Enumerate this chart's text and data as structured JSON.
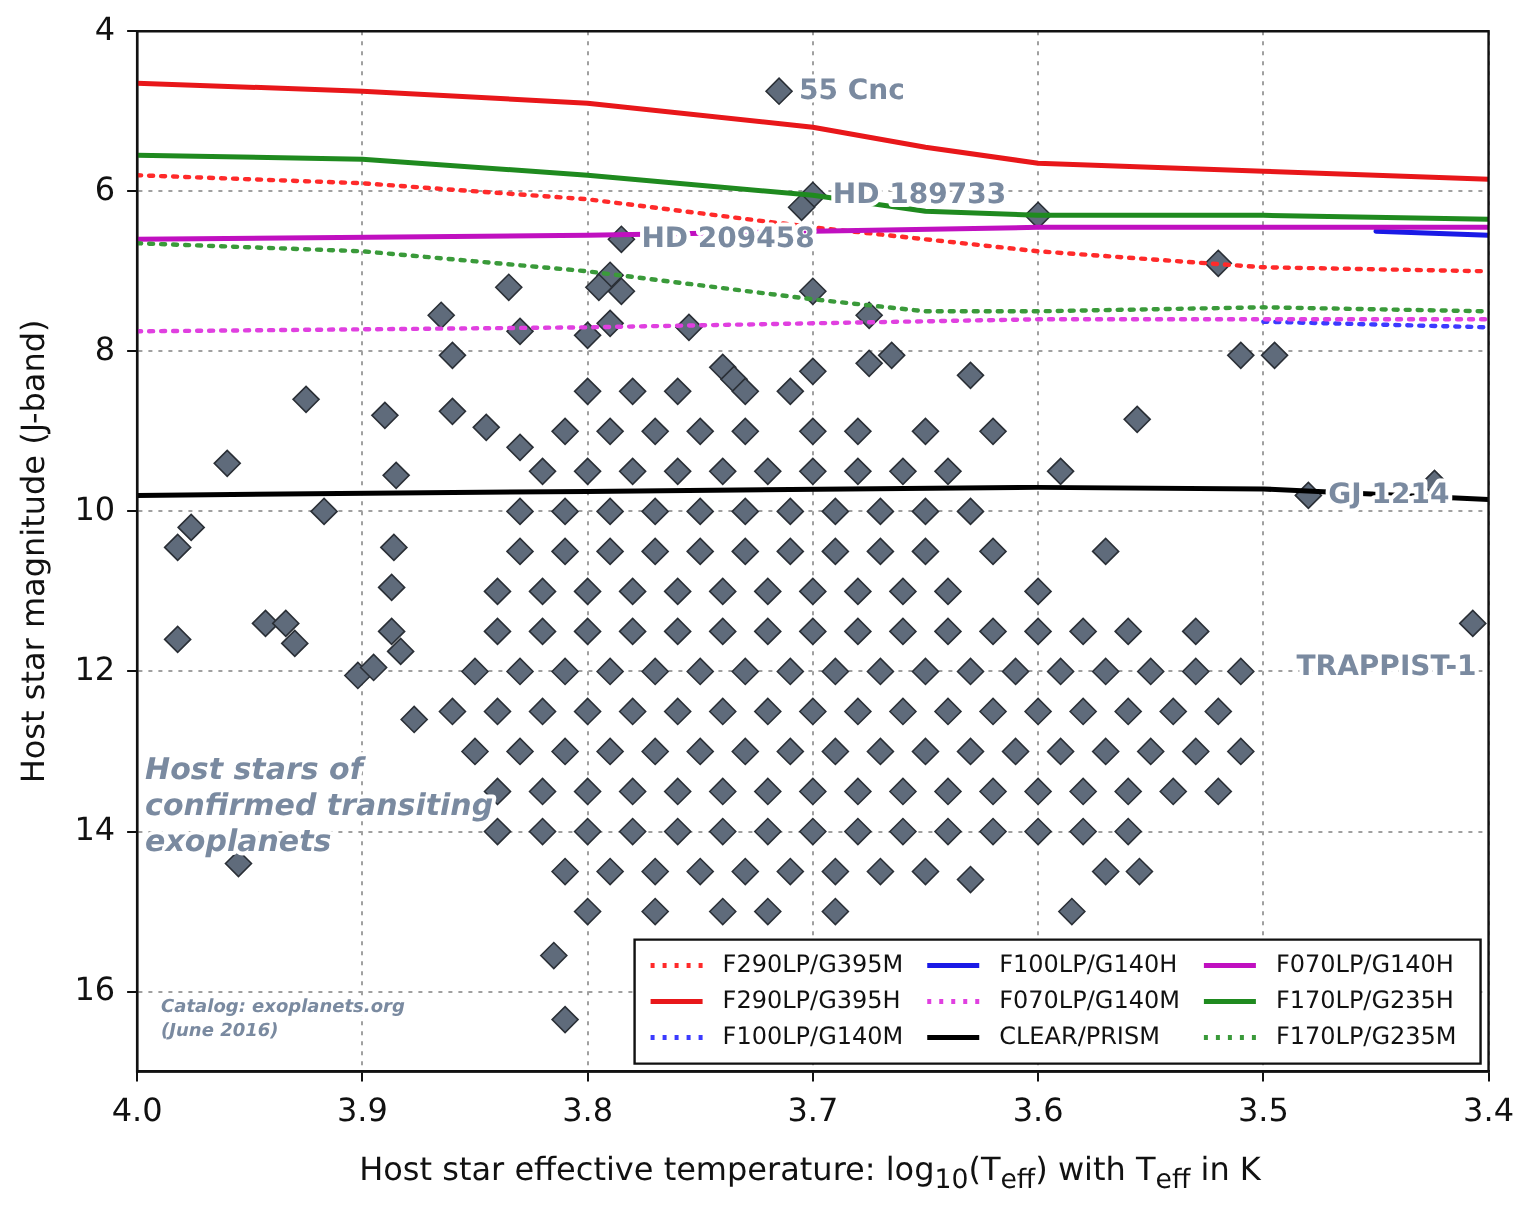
{
  "chart_data": {
    "type": "line",
    "xlabel": "Host star effective temperature: log$_{10}$(T$_{eff}$) with T$_{eff}$ in K",
    "ylabel": "Host star magnitude (J-band)",
    "xlim": [
      4.0,
      3.4
    ],
    "xticks": [
      {
        "value": 4.0,
        "label": "4.0"
      },
      3.9,
      3.8,
      3.7,
      3.6,
      3.5,
      3.4
    ],
    "ylim": [
      17,
      4
    ],
    "yticks": [
      4,
      6,
      8,
      10,
      12,
      14,
      16
    ],
    "grid": true,
    "legend": "bottom right",
    "annotations": [
      {
        "text": "55 Cnc",
        "x": 3.715,
        "y": 4.75
      },
      {
        "text": "HD 189733",
        "x": 3.7,
        "y": 6.05
      },
      {
        "text": "HD 209458",
        "x": 3.785,
        "y": 6.6
      },
      {
        "text": "GJ 1214",
        "x": 3.48,
        "y": 9.8
      },
      {
        "text": "TRAPPIST-1",
        "x": 3.407,
        "y": 11.4
      },
      "Catalog: exoplanets.org",
      "(June 2016)"
    ],
    "series": [
      {
        "type": "scatter",
        "name": "Host stars of confirmed transiting exoplanets",
        "color": "#5f6b7b",
        "marker": "diamond",
        "x": [
          3.715,
          3.7,
          3.705,
          3.785,
          3.6,
          3.52,
          3.51,
          3.495,
          3.835,
          3.865,
          3.86,
          3.83,
          3.79,
          3.785,
          3.795,
          3.79,
          3.8,
          3.755,
          3.7,
          3.675,
          3.675,
          3.665,
          3.7,
          3.74,
          3.735,
          3.63,
          3.925,
          3.89,
          3.86,
          3.845,
          3.83,
          3.96,
          3.885,
          3.556,
          3.424,
          3.48,
          3.407,
          3.982,
          3.976,
          3.982,
          3.943,
          3.934,
          3.93,
          3.917,
          3.902,
          3.895,
          3.887,
          3.887,
          3.886,
          3.883,
          3.877,
          3.955,
          3.84,
          3.815,
          3.81,
          3.585,
          3.63,
          3.555,
          3.8,
          3.78,
          3.76,
          3.73,
          3.71,
          3.81,
          3.79,
          3.77,
          3.75,
          3.73,
          3.7,
          3.68,
          3.65,
          3.62,
          3.82,
          3.8,
          3.78,
          3.76,
          3.74,
          3.72,
          3.7,
          3.68,
          3.66,
          3.64,
          3.59,
          3.83,
          3.81,
          3.79,
          3.77,
          3.75,
          3.73,
          3.71,
          3.69,
          3.67,
          3.65,
          3.63,
          3.83,
          3.81,
          3.79,
          3.77,
          3.75,
          3.73,
          3.71,
          3.69,
          3.67,
          3.65,
          3.62,
          3.57,
          3.84,
          3.82,
          3.8,
          3.78,
          3.76,
          3.74,
          3.72,
          3.7,
          3.68,
          3.66,
          3.64,
          3.6,
          3.84,
          3.82,
          3.8,
          3.78,
          3.76,
          3.74,
          3.72,
          3.7,
          3.68,
          3.66,
          3.64,
          3.62,
          3.6,
          3.58,
          3.56,
          3.53,
          3.85,
          3.83,
          3.81,
          3.79,
          3.77,
          3.75,
          3.73,
          3.71,
          3.69,
          3.67,
          3.65,
          3.63,
          3.61,
          3.59,
          3.57,
          3.55,
          3.53,
          3.51,
          3.86,
          3.84,
          3.82,
          3.8,
          3.78,
          3.76,
          3.74,
          3.72,
          3.7,
          3.68,
          3.66,
          3.64,
          3.62,
          3.6,
          3.58,
          3.56,
          3.54,
          3.52,
          3.85,
          3.83,
          3.81,
          3.79,
          3.77,
          3.75,
          3.73,
          3.71,
          3.69,
          3.67,
          3.65,
          3.63,
          3.61,
          3.59,
          3.57,
          3.55,
          3.53,
          3.51,
          3.84,
          3.82,
          3.8,
          3.78,
          3.76,
          3.74,
          3.72,
          3.7,
          3.68,
          3.66,
          3.64,
          3.62,
          3.6,
          3.58,
          3.56,
          3.54,
          3.52,
          3.82,
          3.8,
          3.78,
          3.76,
          3.74,
          3.72,
          3.7,
          3.68,
          3.66,
          3.64,
          3.62,
          3.6,
          3.58,
          3.56,
          3.81,
          3.79,
          3.77,
          3.75,
          3.73,
          3.71,
          3.69,
          3.67,
          3.65,
          3.57,
          3.8,
          3.77,
          3.74,
          3.72,
          3.69
        ],
        "values": [
          4.75,
          6.05,
          6.2,
          6.6,
          6.3,
          6.9,
          8.05,
          8.05,
          7.2,
          7.55,
          8.05,
          7.75,
          7.05,
          7.25,
          7.2,
          7.65,
          7.8,
          7.7,
          7.25,
          7.55,
          8.15,
          8.05,
          8.25,
          8.2,
          8.35,
          8.3,
          8.6,
          8.8,
          8.75,
          8.95,
          9.2,
          9.4,
          9.55,
          8.85,
          9.65,
          9.8,
          11.4,
          10.45,
          10.2,
          11.6,
          11.4,
          11.4,
          11.65,
          10.0,
          12.05,
          11.95,
          10.95,
          11.5,
          10.45,
          11.75,
          12.6,
          14.4,
          14.0,
          15.55,
          16.35,
          15.0,
          14.6,
          14.5,
          8.5,
          8.5,
          8.5,
          8.5,
          8.5,
          9,
          9,
          9,
          9,
          9,
          9,
          9,
          9,
          9,
          9.5,
          9.5,
          9.5,
          9.5,
          9.5,
          9.5,
          9.5,
          9.5,
          9.5,
          9.5,
          9.5,
          10,
          10,
          10,
          10,
          10,
          10,
          10,
          10,
          10,
          10,
          10,
          10.5,
          10.5,
          10.5,
          10.5,
          10.5,
          10.5,
          10.5,
          10.5,
          10.5,
          10.5,
          10.5,
          10.5,
          11,
          11,
          11,
          11,
          11,
          11,
          11,
          11,
          11,
          11,
          11,
          11,
          11.5,
          11.5,
          11.5,
          11.5,
          11.5,
          11.5,
          11.5,
          11.5,
          11.5,
          11.5,
          11.5,
          11.5,
          11.5,
          11.5,
          11.5,
          11.5,
          12,
          12,
          12,
          12,
          12,
          12,
          12,
          12,
          12,
          12,
          12,
          12,
          12,
          12,
          12,
          12,
          12,
          12,
          12.5,
          12.5,
          12.5,
          12.5,
          12.5,
          12.5,
          12.5,
          12.5,
          12.5,
          12.5,
          12.5,
          12.5,
          12.5,
          12.5,
          12.5,
          12.5,
          12.5,
          12.5,
          13,
          13,
          13,
          13,
          13,
          13,
          13,
          13,
          13,
          13,
          13,
          13,
          13,
          13,
          13,
          13,
          13,
          13,
          13.5,
          13.5,
          13.5,
          13.5,
          13.5,
          13.5,
          13.5,
          13.5,
          13.5,
          13.5,
          13.5,
          13.5,
          13.5,
          13.5,
          13.5,
          13.5,
          13.5,
          14,
          14,
          14,
          14,
          14,
          14,
          14,
          14,
          14,
          14,
          14,
          14,
          14,
          14,
          14.5,
          14.5,
          14.5,
          14.5,
          14.5,
          14.5,
          14.5,
          14.5,
          14.5,
          14.5,
          15,
          15,
          15,
          15,
          15
        ]
      },
      {
        "name": "F290LP/G395M",
        "color": "#ff2a2a",
        "line_style": "dotted",
        "x": [
          4.0,
          3.9,
          3.8,
          3.7,
          3.6,
          3.5,
          3.4
        ],
        "values": [
          5.8,
          5.9,
          6.1,
          6.45,
          6.75,
          6.95,
          7.0
        ]
      },
      {
        "name": "F290LP/G395H",
        "color": "#e8171a",
        "line_style": "solid",
        "x": [
          4.0,
          3.9,
          3.8,
          3.7,
          3.65,
          3.6,
          3.5,
          3.4
        ],
        "values": [
          4.65,
          4.75,
          4.9,
          5.2,
          5.45,
          5.65,
          5.75,
          5.85
        ]
      },
      {
        "name": "F100LP/G140M",
        "color": "#3b3bff",
        "line_style": "dotted",
        "x": [
          3.5,
          3.4
        ],
        "values": [
          7.63,
          7.7
        ]
      },
      {
        "name": "F100LP/G140H",
        "color": "#1a1ae6",
        "line_style": "solid",
        "x": [
          3.45,
          3.4
        ],
        "values": [
          6.5,
          6.55
        ]
      },
      {
        "name": "F070LP/G140M",
        "color": "#e040e0",
        "line_style": "dotted",
        "x": [
          4.0,
          3.8,
          3.6,
          3.5,
          3.4
        ],
        "values": [
          7.75,
          7.7,
          7.6,
          7.6,
          7.6
        ]
      },
      {
        "name": "CLEAR/PRISM",
        "color": "#000000",
        "line_style": "solid",
        "x": [
          4.0,
          3.8,
          3.6,
          3.5,
          3.4
        ],
        "values": [
          9.8,
          9.75,
          9.7,
          9.72,
          9.85
        ]
      },
      {
        "name": "F070LP/G140H",
        "color": "#c010c0",
        "line_style": "solid",
        "x": [
          4.0,
          3.8,
          3.7,
          3.6,
          3.5,
          3.4
        ],
        "values": [
          6.6,
          6.55,
          6.5,
          6.45,
          6.45,
          6.45
        ]
      },
      {
        "name": "F170LP/G235H",
        "color": "#1f8a1f",
        "line_style": "solid",
        "x": [
          4.0,
          3.9,
          3.8,
          3.7,
          3.65,
          3.6,
          3.5,
          3.4
        ],
        "values": [
          5.55,
          5.6,
          5.8,
          6.05,
          6.25,
          6.3,
          6.3,
          6.35
        ]
      },
      {
        "name": "F170LP/G235M",
        "color": "#3a9a3a",
        "line_style": "dotted",
        "x": [
          4.0,
          3.9,
          3.8,
          3.7,
          3.65,
          3.6,
          3.5,
          3.4
        ],
        "values": [
          6.65,
          6.75,
          7.0,
          7.35,
          7.5,
          7.5,
          7.45,
          7.5
        ]
      }
    ]
  }
}
